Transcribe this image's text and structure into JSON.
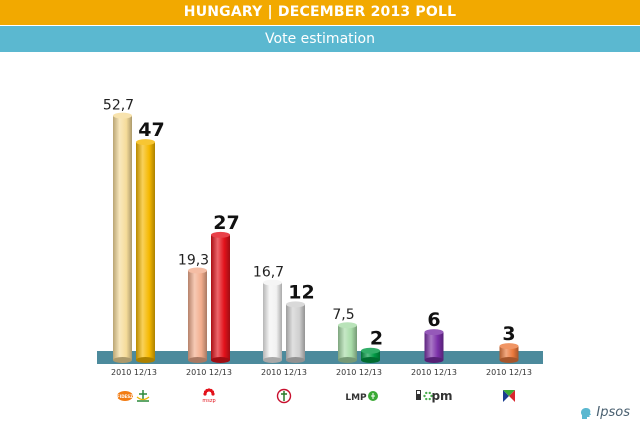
{
  "header": {
    "title": "HUNGARY | DECEMBER 2013 POLL",
    "subtitle": "Vote estimation"
  },
  "brand": {
    "name": "Ipsos",
    "icon": "ipsos-head-icon"
  },
  "chart_data": {
    "type": "bar",
    "title": "HUNGARY | DECEMBER 2013 POLL",
    "subtitle": "Vote estimation",
    "ylim": [
      0,
      55
    ],
    "grid": false,
    "legend": "none",
    "group_labels": [
      {
        "party": "Fidesz-KDNP",
        "label": "2010 12/13",
        "logo_text": "FIDESZ",
        "logo_icon": "fidesz-kdnp-logo-icon"
      },
      {
        "party": "MSZP",
        "label": "2010 12/13",
        "logo_text": "mszp",
        "logo_icon": "mszp-logo-icon"
      },
      {
        "party": "Jobbik",
        "label": "2010 12/13",
        "logo_text": "",
        "logo_icon": "jobbik-logo-icon"
      },
      {
        "party": "LMP",
        "label": "2010 12/13",
        "logo_text": "LMP",
        "logo_icon": "lmp-logo-icon"
      },
      {
        "party": "Együtt-PM",
        "label": "2010 12/13",
        "logo_text": "pm",
        "logo_icon": "egyutt-pm-logo-icon"
      },
      {
        "party": "DK",
        "label": "2010 12/13",
        "logo_text": "",
        "logo_icon": "dk-logo-icon"
      }
    ],
    "bars": [
      {
        "group": 0,
        "series": "2010",
        "value": 52.7,
        "label": "52,7",
        "color": "#f6dc9a"
      },
      {
        "group": 0,
        "series": "12/13",
        "value": 47,
        "label": "47",
        "color": "#f5b800"
      },
      {
        "group": 1,
        "series": "2010",
        "value": 19.3,
        "label": "19,3",
        "color": "#f2ad8d"
      },
      {
        "group": 1,
        "series": "12/13",
        "value": 27,
        "label": "27",
        "color": "#e3121b"
      },
      {
        "group": 2,
        "series": "2010",
        "value": 16.7,
        "label": "16,7",
        "color": "#f2f2f2"
      },
      {
        "group": 2,
        "series": "12/13",
        "value": 12,
        "label": "12",
        "color": "#d0d0d0"
      },
      {
        "group": 3,
        "series": "2010",
        "value": 7.5,
        "label": "7,5",
        "color": "#a8dca8"
      },
      {
        "group": 3,
        "series": "12/13",
        "value": 2,
        "label": "2",
        "color": "#009a44"
      },
      {
        "group": 4,
        "series": "12/13",
        "value": 6,
        "label": "6",
        "color": "#7b2fa8"
      },
      {
        "group": 5,
        "series": "12/13",
        "value": 3,
        "label": "3",
        "color": "#ec7a3d"
      }
    ]
  }
}
